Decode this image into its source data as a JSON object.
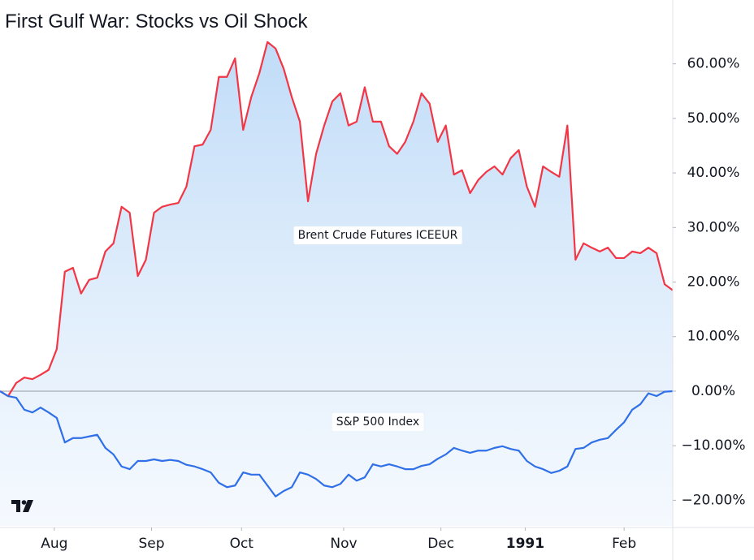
{
  "chart_data": {
    "type": "line",
    "title": "First Gulf War: Stocks vs Oil Shock",
    "xlim": [
      0,
      83
    ],
    "xticks": [
      {
        "value": 6.7,
        "label": "Aug"
      },
      {
        "value": 18.7,
        "label": "Sep"
      },
      {
        "value": 29.8,
        "label": "Oct"
      },
      {
        "value": 42.4,
        "label": "Nov"
      },
      {
        "value": 54.4,
        "label": "Dec"
      },
      {
        "value": 64.8,
        "label": "1991"
      },
      {
        "value": 77.0,
        "label": "Feb"
      }
    ],
    "ylim": [
      -24.7,
      71.7
    ],
    "yticks": [
      {
        "value": 60,
        "label": "60.00%"
      },
      {
        "value": 50,
        "label": "50.00%"
      },
      {
        "value": 40,
        "label": "40.00%"
      },
      {
        "value": 30,
        "label": "30.00%"
      },
      {
        "value": 20,
        "label": "20.00%"
      },
      {
        "value": 10,
        "label": "10.00%"
      },
      {
        "value": 0,
        "label": "0.00%"
      },
      {
        "value": -10,
        "label": "−10.00%"
      },
      {
        "value": -20,
        "label": "−20.00%"
      }
    ],
    "series": [
      {
        "name": "Brent Crude Futures ICEEUR",
        "color": "#f23645",
        "values": [
          0,
          -0.9,
          1.5,
          2.5,
          2.2,
          3.0,
          3.9,
          7.7,
          21.9,
          22.6,
          17.9,
          20.4,
          20.8,
          25.6,
          27.1,
          33.8,
          32.7,
          21.1,
          24.1,
          32.7,
          33.8,
          34.2,
          34.5,
          37.5,
          44.9,
          45.2,
          47.9,
          57.6,
          57.6,
          61.0,
          47.9,
          53.9,
          58.3,
          64.0,
          62.8,
          59.1,
          53.9,
          49.4,
          34.8,
          43.5,
          48.7,
          53.1,
          54.6,
          48.7,
          49.4,
          55.7,
          49.4,
          49.4,
          44.9,
          43.5,
          45.7,
          49.4,
          54.6,
          52.7,
          45.7,
          48.7,
          39.7,
          40.5,
          36.3,
          38.7,
          40.2,
          41.2,
          39.7,
          42.7,
          44.2,
          37.5,
          33.8,
          41.2,
          40.2,
          39.3,
          48.7,
          24.1,
          27.1,
          26.3,
          25.6,
          26.3,
          24.4,
          24.4,
          25.6,
          25.3,
          26.3,
          25.3,
          19.6,
          18.5
        ]
      },
      {
        "name": "S&P 500 Index",
        "color": "#2f6fe8",
        "values": [
          0,
          -0.9,
          -1.2,
          -3.4,
          -3.9,
          -3.0,
          -3.9,
          -4.9,
          -9.4,
          -8.6,
          -8.6,
          -8.3,
          -8.0,
          -10.4,
          -11.6,
          -13.8,
          -14.3,
          -12.8,
          -12.8,
          -12.5,
          -12.8,
          -12.6,
          -12.8,
          -13.5,
          -13.8,
          -14.3,
          -14.9,
          -16.8,
          -17.6,
          -17.3,
          -14.9,
          -15.3,
          -15.3,
          -17.3,
          -19.3,
          -18.3,
          -17.6,
          -14.9,
          -15.3,
          -16.1,
          -17.3,
          -17.6,
          -17.0,
          -15.3,
          -16.4,
          -15.8,
          -13.4,
          -13.8,
          -13.4,
          -13.8,
          -14.3,
          -14.3,
          -13.7,
          -13.4,
          -12.4,
          -11.6,
          -10.4,
          -10.9,
          -11.3,
          -10.9,
          -10.9,
          -10.4,
          -10.1,
          -10.6,
          -10.9,
          -12.8,
          -13.8,
          -14.3,
          -15.0,
          -14.6,
          -13.8,
          -10.6,
          -10.4,
          -9.4,
          -8.9,
          -8.6,
          -7.1,
          -5.7,
          -3.4,
          -2.4,
          -0.4,
          -0.9,
          -0.1,
          0
        ]
      }
    ]
  }
}
